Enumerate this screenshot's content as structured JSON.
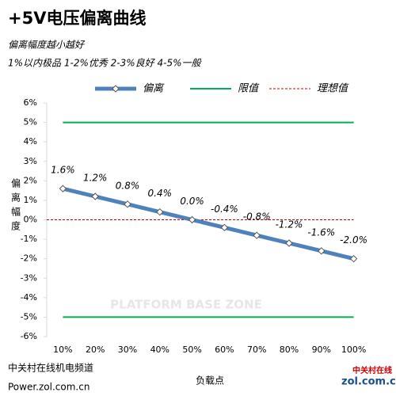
{
  "chart_data": {
    "type": "line",
    "title": "+5V电压偏离曲线",
    "subtitle": [
      "偏离幅度越小越好",
      "1%以内极品 1-2%优秀  2-3%良好 4-5%一般"
    ],
    "y_label": "偏离幅度",
    "x_label": "负载点",
    "categories": [
      "10%",
      "20%",
      "30%",
      "40%",
      "50%",
      "60%",
      "70%",
      "80%",
      "90%",
      "100%"
    ],
    "series": [
      {
        "name": "偏离",
        "color": "#4f81bd",
        "values": [
          1.6,
          1.2,
          0.8,
          0.4,
          0.0,
          -0.4,
          -0.8,
          -1.2,
          -1.6,
          -2.0
        ],
        "value_labels": [
          "1.6%",
          "1.2%",
          "0.8%",
          "0.4%",
          "0.0%",
          "-0.4%",
          "-0.8%",
          "-1.2%",
          "-1.6%",
          "-2.0%"
        ]
      },
      {
        "name": "限值",
        "color": "#00b050",
        "lines": [
          5,
          -5
        ]
      },
      {
        "name": "理想值",
        "color": "#c00000",
        "lines": [
          0
        ],
        "dashed": true
      }
    ],
    "ylim": [
      -6,
      6
    ],
    "yticks": [
      {
        "value": -6,
        "label": "-6%"
      },
      {
        "value": -5,
        "label": "-5%"
      },
      {
        "value": -4,
        "label": "-4%"
      },
      {
        "value": -3,
        "label": "-3%"
      },
      {
        "value": -2,
        "label": "-2%"
      },
      {
        "value": -1,
        "label": "-1%"
      },
      {
        "value": 0,
        "label": "0%"
      },
      {
        "value": 1,
        "label": "1%"
      },
      {
        "value": 2,
        "label": "2%"
      },
      {
        "value": 3,
        "label": "3%"
      },
      {
        "value": 4,
        "label": "4%"
      },
      {
        "value": 5,
        "label": "5%"
      },
      {
        "value": 6,
        "label": "6%"
      }
    ],
    "legend": "top",
    "grid": false,
    "watermark": "PLATFORM BASE ZONE",
    "footer": [
      "中关村在线机电频道",
      "Power.zol.com.cn"
    ],
    "logo": [
      "中关村在线",
      "zol.com.cn"
    ]
  }
}
